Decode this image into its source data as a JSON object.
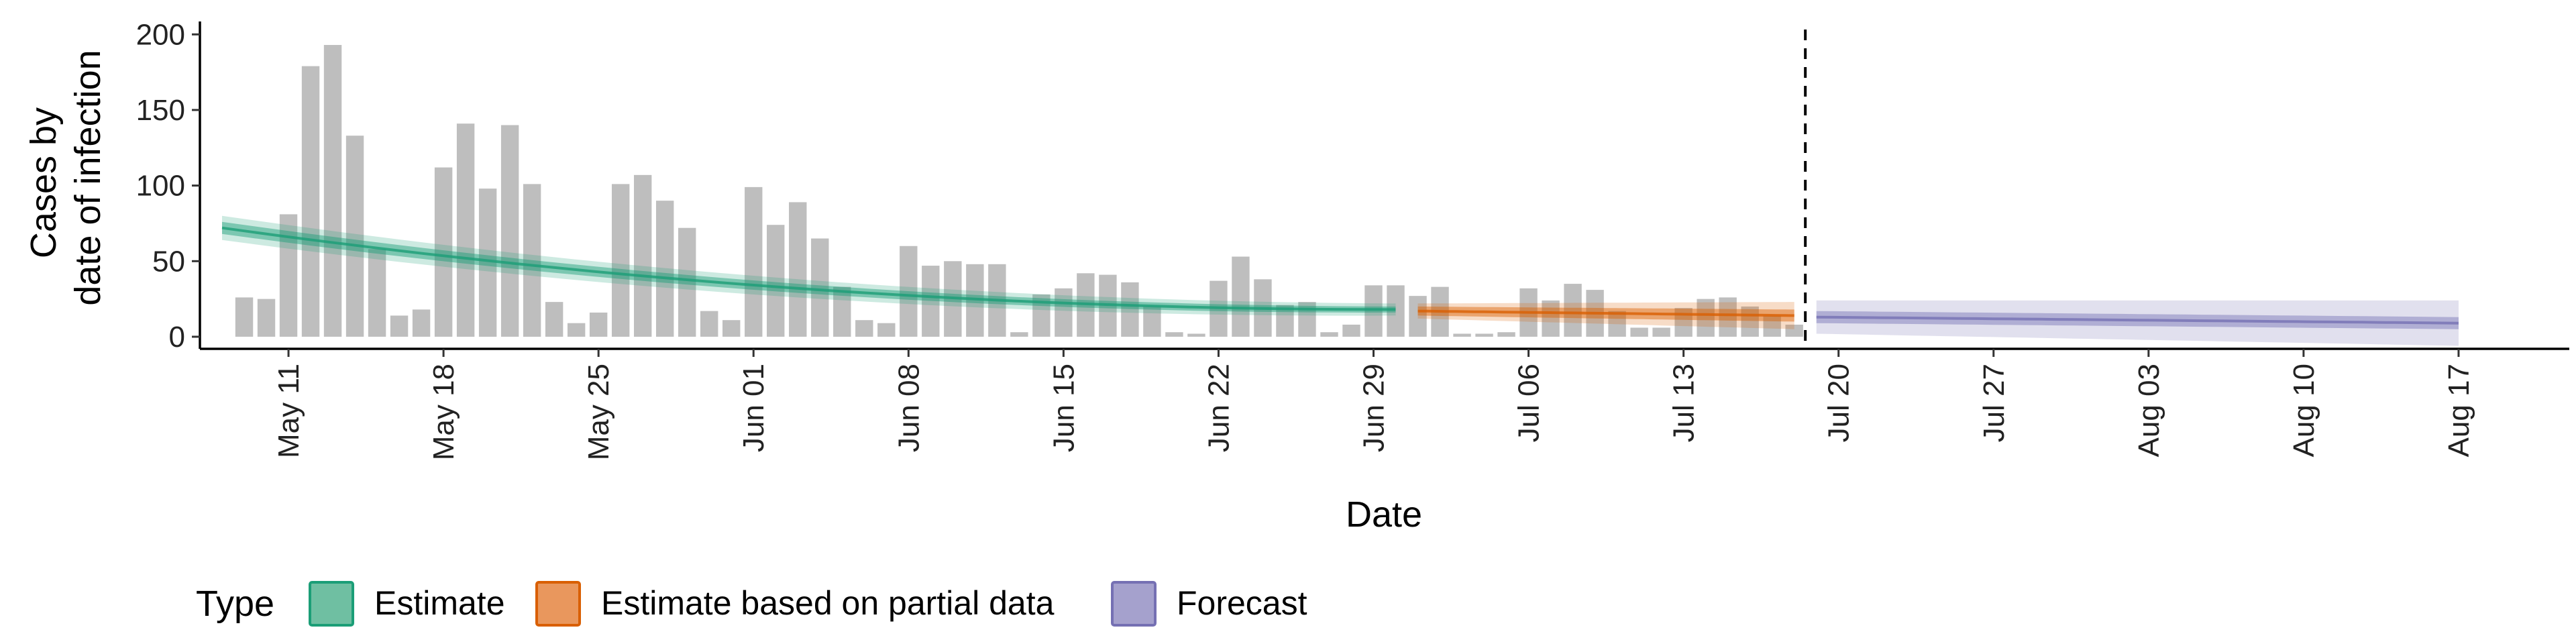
{
  "chart_data": {
    "type": "bar",
    "xlabel": "Date",
    "ylabel_lines": [
      "Cases by",
      "date of infection"
    ],
    "ylim": [
      -8,
      205
    ],
    "y_ticks": [
      0,
      50,
      100,
      150,
      200
    ],
    "x_range": [
      "2020-05-07",
      "2020-08-22"
    ],
    "x_ticks": [
      {
        "date": "2020-05-11",
        "label": "May 11"
      },
      {
        "date": "2020-05-18",
        "label": "May 18"
      },
      {
        "date": "2020-05-25",
        "label": "May 25"
      },
      {
        "date": "2020-06-01",
        "label": "Jun 01"
      },
      {
        "date": "2020-06-08",
        "label": "Jun 08"
      },
      {
        "date": "2020-06-15",
        "label": "Jun 15"
      },
      {
        "date": "2020-06-22",
        "label": "Jun 22"
      },
      {
        "date": "2020-06-29",
        "label": "Jun 29"
      },
      {
        "date": "2020-07-06",
        "label": "Jul 06"
      },
      {
        "date": "2020-07-13",
        "label": "Jul 13"
      },
      {
        "date": "2020-07-20",
        "label": "Jul 20"
      },
      {
        "date": "2020-07-27",
        "label": "Jul 27"
      },
      {
        "date": "2020-08-03",
        "label": "Aug 03"
      },
      {
        "date": "2020-08-10",
        "label": "Aug 10"
      },
      {
        "date": "2020-08-17",
        "label": "Aug 17"
      }
    ],
    "bars": {
      "start_date": "2020-05-09",
      "color": "#bebebe",
      "values": [
        26,
        25,
        81,
        179,
        193,
        133,
        58,
        14,
        18,
        112,
        141,
        98,
        140,
        101,
        23,
        9,
        16,
        101,
        107,
        90,
        72,
        17,
        11,
        99,
        74,
        89,
        65,
        33,
        11,
        9,
        60,
        47,
        50,
        48,
        48,
        3,
        28,
        32,
        42,
        41,
        36,
        20,
        3,
        2,
        37,
        53,
        38,
        21,
        23,
        3,
        8,
        34,
        34,
        27,
        33,
        2,
        2,
        3,
        32,
        24,
        35,
        31,
        17,
        6,
        6,
        19,
        25,
        26,
        20,
        14,
        8
      ]
    },
    "forecast_cutoff": "2020-07-18",
    "legend": {
      "title": "Type",
      "entries": [
        {
          "label": "Estimate",
          "fill": "#6fbfa2",
          "stroke": "#1b9e77"
        },
        {
          "label": "Estimate based on partial data",
          "fill": "#e9975d",
          "stroke": "#d95f02"
        },
        {
          "label": "Forecast",
          "fill": "#a5a1cd",
          "stroke": "#7570b3"
        }
      ]
    },
    "series": [
      {
        "type": "estimate",
        "color": "#1b9e77",
        "start_date": "2020-05-08",
        "end_date": "2020-06-30",
        "median_start": 72,
        "median_end": 18,
        "inner_half_width": [
          4,
          2
        ],
        "outer_half_width": [
          8,
          4
        ]
      },
      {
        "type": "estimate_partial",
        "color": "#d95f02",
        "start_date": "2020-07-01",
        "end_date": "2020-07-18",
        "median_start": 17,
        "median_end": 14,
        "inner_half_width": [
          3,
          4
        ],
        "outer_half_width": [
          5,
          9
        ]
      },
      {
        "type": "forecast",
        "color": "#7570b3",
        "start_date": "2020-07-19",
        "end_date": "2020-08-17",
        "median_start": 13,
        "median_end": 9,
        "inner_half_width": [
          4,
          4
        ],
        "outer_half_width": [
          11,
          15
        ]
      }
    ]
  }
}
